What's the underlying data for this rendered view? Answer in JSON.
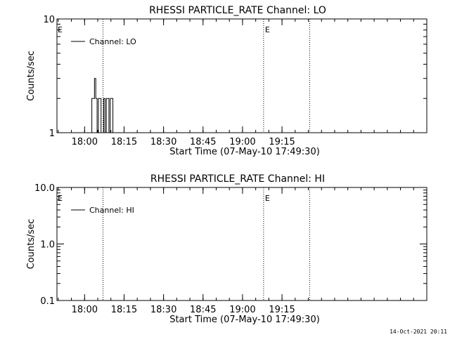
{
  "footer": {
    "timestamp": "14-Oct-2021 20:11"
  },
  "chart_data": [
    {
      "type": "line",
      "title": "RHESSI PARTICLE_RATE Channel: LO",
      "xlabel": "Start Time (07-May-10 17:49:30)",
      "ylabel": "Counts/sec",
      "yscale": "log",
      "xlim": [
        "17:49:30",
        "20:10:00"
      ],
      "ylim": [
        1,
        10
      ],
      "yticks": [
        1,
        10
      ],
      "ytick_labels": [
        "1",
        "10"
      ],
      "xticks": [
        "18:00",
        "18:15",
        "18:30",
        "18:45",
        "19:00",
        "19:15"
      ],
      "legend": {
        "placement": "top-left",
        "entries": [
          "Channel: LO"
        ]
      },
      "event_lines": [
        {
          "time": "18:07:00",
          "label": ""
        },
        {
          "time": "19:08:00",
          "label": "E"
        },
        {
          "time": "19:25:30",
          "label": ""
        }
      ],
      "start_marker": "E",
      "series": [
        {
          "name": "Channel: LO",
          "x": [
            "18:02:30",
            "18:03:00",
            "18:03:30",
            "18:04:00",
            "18:04:30",
            "18:05:00",
            "18:05:30",
            "18:06:00",
            "18:06:30",
            "18:07:00",
            "18:07:30",
            "18:08:00",
            "18:08:30",
            "18:09:00",
            "18:09:30",
            "18:10:00",
            "18:10:30",
            "18:11:00"
          ],
          "y": [
            1,
            2,
            2,
            3,
            2,
            1,
            2,
            2,
            1,
            1,
            2,
            1,
            2,
            2,
            1,
            2,
            2,
            1
          ]
        }
      ]
    },
    {
      "type": "line",
      "title": "RHESSI PARTICLE_RATE Channel: HI",
      "xlabel": "Start Time (07-May-10 17:49:30)",
      "ylabel": "Counts/sec",
      "yscale": "log",
      "xlim": [
        "17:49:30",
        "20:10:00"
      ],
      "ylim": [
        0.1,
        10
      ],
      "yticks": [
        0.1,
        1,
        10
      ],
      "ytick_labels": [
        "0.1",
        "1.0",
        "10.0"
      ],
      "xticks": [
        "18:00",
        "18:15",
        "18:30",
        "18:45",
        "19:00",
        "19:15"
      ],
      "legend": {
        "placement": "top-left",
        "entries": [
          "Channel: HI"
        ]
      },
      "event_lines": [
        {
          "time": "18:07:00",
          "label": ""
        },
        {
          "time": "19:08:00",
          "label": "E"
        },
        {
          "time": "19:25:30",
          "label": ""
        }
      ],
      "start_marker": "E",
      "series": [
        {
          "name": "Channel: HI",
          "x": [],
          "y": []
        }
      ]
    }
  ]
}
